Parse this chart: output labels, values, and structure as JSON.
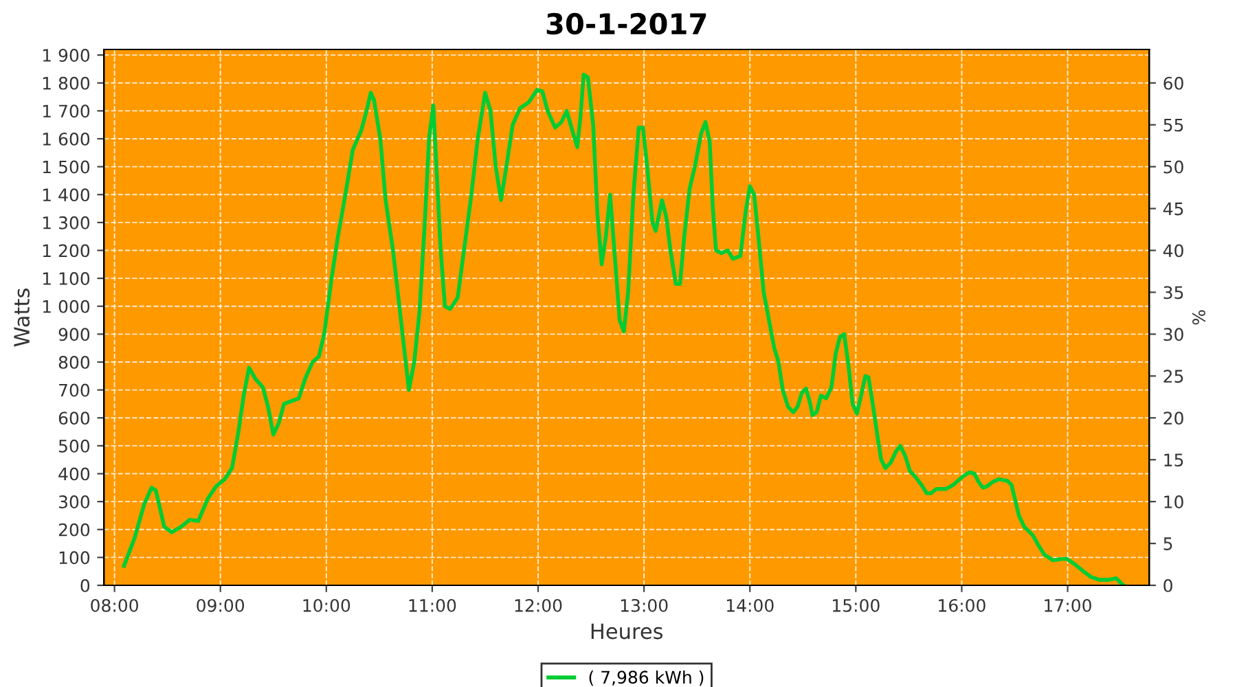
{
  "chart_data": {
    "type": "line",
    "title": "30-1-2017",
    "xlabel": "Heures",
    "ylabel": "Watts",
    "y2label": "%",
    "xlim": [
      7.9,
      17.77
    ],
    "xticks": [
      {
        "value": 8,
        "label": "08:00"
      },
      {
        "value": 9,
        "label": "09:00"
      },
      {
        "value": 10,
        "label": "10:00"
      },
      {
        "value": 11,
        "label": "11:00"
      },
      {
        "value": 12,
        "label": "12:00"
      },
      {
        "value": 13,
        "label": "13:00"
      },
      {
        "value": 14,
        "label": "14:00"
      },
      {
        "value": 15,
        "label": "15:00"
      },
      {
        "value": 16,
        "label": "16:00"
      },
      {
        "value": 17,
        "label": "17:00"
      }
    ],
    "ylim": [
      0,
      1920
    ],
    "yticks": [
      0,
      100,
      200,
      300,
      400,
      500,
      600,
      700,
      800,
      900,
      {
        "value": 1000,
        "label": "1 000"
      },
      {
        "value": 1100,
        "label": "1 100"
      },
      {
        "value": 1200,
        "label": "1 200"
      },
      {
        "value": 1300,
        "label": "1 300"
      },
      {
        "value": 1400,
        "label": "1 400"
      },
      {
        "value": 1500,
        "label": "1 500"
      },
      {
        "value": 1600,
        "label": "1 600"
      },
      {
        "value": 1700,
        "label": "1 700"
      },
      {
        "value": 1800,
        "label": "1 800"
      },
      {
        "value": 1900,
        "label": "1 900"
      }
    ],
    "y2lim": [
      0,
      64
    ],
    "y2ticks": [
      0,
      5,
      10,
      15,
      20,
      25,
      30,
      35,
      40,
      45,
      50,
      55,
      60
    ],
    "grid": true,
    "legend": "bottom",
    "marker": "none",
    "line_style": "solid",
    "series": [
      {
        "name": "( 7,986 kWh )",
        "color": "#00cc33",
        "x": [
          8.09,
          8.19,
          8.28,
          8.35,
          8.39,
          8.47,
          8.54,
          8.63,
          8.71,
          8.79,
          8.88,
          8.96,
          9.04,
          9.11,
          9.17,
          9.22,
          9.27,
          9.33,
          9.4,
          9.45,
          9.5,
          9.55,
          9.6,
          9.67,
          9.74,
          9.8,
          9.87,
          9.93,
          9.98,
          10.05,
          10.11,
          10.18,
          10.25,
          10.33,
          10.38,
          10.42,
          10.45,
          10.51,
          10.56,
          10.63,
          10.69,
          10.75,
          10.78,
          10.83,
          10.88,
          10.93,
          10.97,
          11.01,
          11.04,
          11.08,
          11.12,
          11.17,
          11.24,
          11.3,
          11.37,
          11.43,
          11.5,
          11.55,
          11.6,
          11.65,
          11.7,
          11.76,
          11.83,
          11.91,
          11.99,
          12.04,
          12.09,
          12.16,
          12.22,
          12.27,
          12.33,
          12.37,
          12.4,
          12.43,
          12.47,
          12.52,
          12.56,
          12.6,
          12.64,
          12.68,
          12.72,
          12.77,
          12.81,
          12.85,
          12.9,
          12.95,
          12.99,
          13.03,
          13.08,
          13.11,
          13.17,
          13.21,
          13.25,
          13.3,
          13.34,
          13.38,
          13.43,
          13.48,
          13.54,
          13.58,
          13.62,
          13.65,
          13.68,
          13.73,
          13.79,
          13.84,
          13.91,
          13.96,
          14.0,
          14.04,
          14.08,
          14.13,
          14.18,
          14.23,
          14.27,
          14.31,
          14.36,
          14.41,
          14.45,
          14.49,
          14.53,
          14.57,
          14.59,
          14.63,
          14.67,
          14.72,
          14.77,
          14.81,
          14.85,
          14.89,
          14.93,
          14.97,
          15.01,
          15.05,
          15.09,
          15.12,
          15.16,
          15.21,
          15.24,
          15.28,
          15.33,
          15.38,
          15.42,
          15.47,
          15.51,
          15.56,
          15.62,
          15.67,
          15.71,
          15.76,
          15.85,
          15.92,
          16.01,
          16.07,
          16.12,
          16.16,
          16.2,
          16.24,
          16.29,
          16.35,
          16.43,
          16.47,
          16.54,
          16.59,
          16.67,
          16.73,
          16.78,
          16.86,
          16.95,
          16.99,
          17.07,
          17.15,
          17.22,
          17.3,
          17.39,
          17.46,
          17.51,
          17.53
        ],
        "values": [
          70,
          170,
          290,
          350,
          340,
          210,
          190,
          210,
          235,
          230,
          310,
          355,
          380,
          420,
          550,
          680,
          780,
          740,
          710,
          640,
          540,
          580,
          650,
          660,
          670,
          740,
          800,
          820,
          900,
          1100,
          1250,
          1400,
          1560,
          1630,
          1700,
          1765,
          1740,
          1600,
          1380,
          1200,
          1000,
          800,
          700,
          800,
          980,
          1300,
          1600,
          1720,
          1500,
          1200,
          1000,
          990,
          1030,
          1200,
          1400,
          1600,
          1765,
          1700,
          1500,
          1380,
          1500,
          1650,
          1710,
          1730,
          1775,
          1770,
          1700,
          1640,
          1660,
          1700,
          1620,
          1570,
          1680,
          1830,
          1820,
          1650,
          1330,
          1150,
          1250,
          1400,
          1200,
          950,
          910,
          1050,
          1400,
          1640,
          1640,
          1500,
          1300,
          1270,
          1380,
          1320,
          1200,
          1080,
          1080,
          1250,
          1420,
          1500,
          1620,
          1660,
          1590,
          1350,
          1200,
          1190,
          1200,
          1170,
          1180,
          1340,
          1430,
          1400,
          1250,
          1050,
          950,
          850,
          800,
          700,
          640,
          620,
          640,
          690,
          705,
          650,
          610,
          620,
          680,
          670,
          710,
          830,
          890,
          900,
          790,
          650,
          615,
          680,
          750,
          745,
          650,
          520,
          450,
          420,
          440,
          480,
          500,
          460,
          410,
          390,
          360,
          330,
          330,
          345,
          345,
          360,
          390,
          405,
          400,
          370,
          350,
          355,
          370,
          380,
          375,
          360,
          250,
          210,
          180,
          140,
          110,
          90,
          95,
          95,
          75,
          50,
          30,
          20,
          20,
          25,
          5,
          0
        ]
      }
    ]
  }
}
